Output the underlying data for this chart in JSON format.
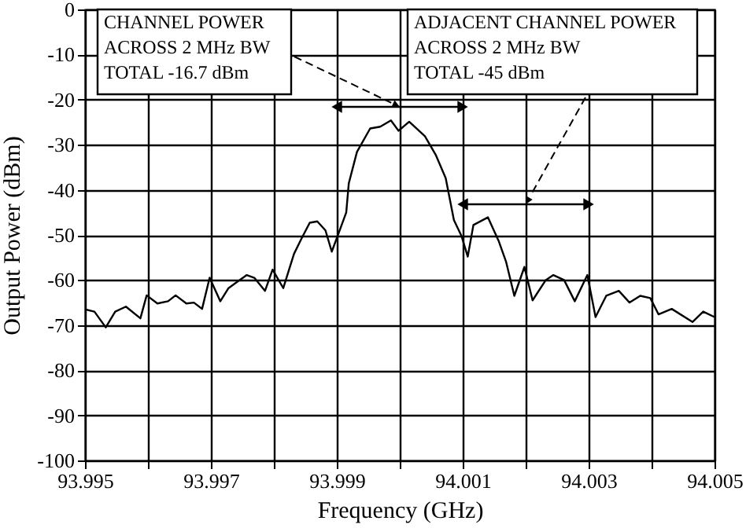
{
  "chart_data": {
    "type": "line",
    "xlabel": "Frequency (GHz)",
    "ylabel": "Output Power (dBm)",
    "xlim": [
      93.995,
      94.005
    ],
    "ylim": [
      -100,
      0
    ],
    "xticks": [
      93.995,
      {
        "value": 93.996,
        "label": null
      },
      93.997,
      {
        "value": 93.998,
        "label": null
      },
      93.999,
      {
        "value": 94.0,
        "label": null
      },
      94.001,
      {
        "value": 94.002,
        "label": null
      },
      94.003,
      {
        "value": 94.004,
        "label": null
      },
      94.005
    ],
    "yticks": [
      0,
      -10,
      -20,
      -30,
      -40,
      -50,
      -60,
      -70,
      -80,
      -90,
      -100
    ],
    "grid": true,
    "series": [
      {
        "color": "#000000",
        "line_style": "solid",
        "x": [
          93.995,
          93.99515,
          93.99533,
          93.99548,
          93.99565,
          93.99588,
          93.99598,
          93.99615,
          93.99632,
          93.99644,
          93.99661,
          93.99673,
          93.99686,
          93.99698,
          93.99715,
          93.99728,
          93.9974,
          93.99757,
          93.99769,
          93.99786,
          93.99798,
          93.99815,
          93.99832,
          93.99844,
          93.99857,
          93.99869,
          93.99882,
          93.99892,
          93.99903,
          93.99915,
          93.99919,
          93.99932,
          93.99953,
          93.99969,
          93.99986,
          93.99998,
          94.00015,
          94.0004,
          94.00057,
          94.00073,
          94.00086,
          94.00098,
          94.00108,
          94.00117,
          94.0014,
          94.00157,
          94.00169,
          94.00182,
          94.00198,
          94.00211,
          94.00232,
          94.00244,
          94.00261,
          94.00278,
          94.00298,
          94.00311,
          94.00328,
          94.00348,
          94.00365,
          94.00382,
          94.00398,
          94.00411,
          94.00432,
          94.00465,
          94.00482,
          94.005
        ],
        "values": [
          -66.5,
          -67.0,
          -70.5,
          -67.0,
          -65.9,
          -68.5,
          -63.4,
          -65.2,
          -64.7,
          -63.4,
          -65.2,
          -65.0,
          -66.4,
          -59.5,
          -64.7,
          -61.8,
          -60.6,
          -58.9,
          -59.5,
          -62.4,
          -57.7,
          -61.8,
          -54.2,
          -50.8,
          -47.3,
          -47.0,
          -49.0,
          -53.7,
          -49.6,
          -45.0,
          -38.6,
          -31.6,
          -26.4,
          -26.0,
          -24.6,
          -26.9,
          -24.9,
          -28.1,
          -32.2,
          -37.4,
          -46.7,
          -50.2,
          -54.8,
          -47.8,
          -46.1,
          -51.3,
          -56.0,
          -63.5,
          -57.1,
          -64.5,
          -60.0,
          -58.9,
          -60.0,
          -64.7,
          -58.9,
          -68.2,
          -63.5,
          -62.4,
          -65.0,
          -63.5,
          -64.0,
          -67.6,
          -66.4,
          -69.3,
          -67.0,
          -68.2
        ]
      },
      {
        "type": "line",
        "color": "#000000",
        "marker": "triangle",
        "x": [
          93.999,
          94.001
        ],
        "values": [
          -21.6,
          -21.6
        ]
      },
      {
        "type": "line",
        "color": "#000000",
        "marker": "triangle",
        "x": [
          94.001,
          94.003
        ],
        "values": [
          -43.2,
          -43.2
        ]
      }
    ],
    "annotations": [
      {
        "text": "CHANNEL POWER\nACROSS 2 MHz BW\nTOTAL -16.7 dBm",
        "x": 94.0,
        "y": -21.6
      },
      {
        "text": "ADJACENT CHANNEL POWER\nACROSS 2 MHz BW\nTOTAL -45 dBm",
        "x": 94.002,
        "y": -43.2
      }
    ]
  }
}
